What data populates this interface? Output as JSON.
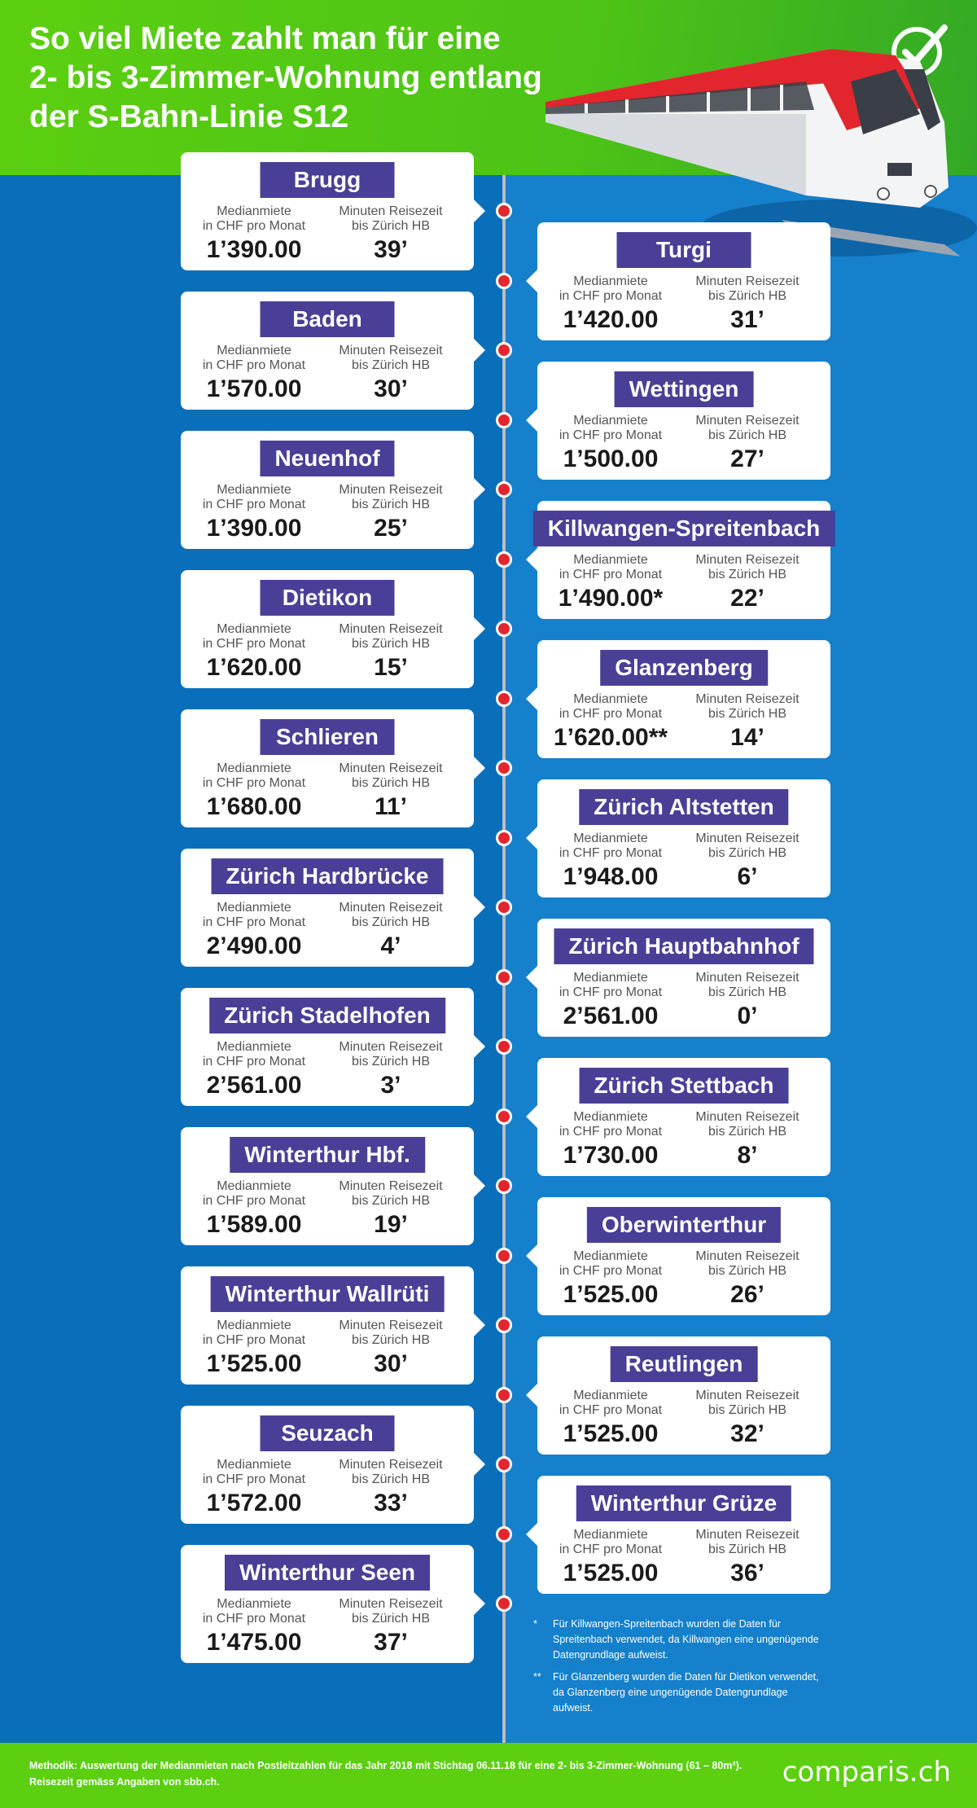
{
  "title": "So viel Miete zahlt man für eine\n2- bis 3-Zimmer-Wohnung entlang\nder S-Bahn-Linie S12",
  "labels": {
    "rent": "Medianmiete\nin CHF pro Monat",
    "time": "Minuten Reisezeit\nbis Zürich HB"
  },
  "stations": [
    {
      "name": "Brugg",
      "rent": "1’390.00",
      "time": "39’"
    },
    {
      "name": "Turgi",
      "rent": "1’420.00",
      "time": "31’"
    },
    {
      "name": "Baden",
      "rent": "1’570.00",
      "time": "30’"
    },
    {
      "name": "Wettingen",
      "rent": "1’500.00",
      "time": "27’"
    },
    {
      "name": "Neuenhof",
      "rent": "1’390.00",
      "time": "25’"
    },
    {
      "name": "Killwangen-Spreitenbach",
      "rent": "1’490.00*",
      "time": "22’"
    },
    {
      "name": "Dietikon",
      "rent": "1’620.00",
      "time": "15’"
    },
    {
      "name": "Glanzenberg",
      "rent": "1’620.00**",
      "time": "14’"
    },
    {
      "name": "Schlieren",
      "rent": "1’680.00",
      "time": "11’"
    },
    {
      "name": "Zürich Altstetten",
      "rent": "1’948.00",
      "time": "6’"
    },
    {
      "name": "Zürich Hardbrücke",
      "rent": "2’490.00",
      "time": "4’"
    },
    {
      "name": "Zürich Hauptbahnhof",
      "rent": "2’561.00",
      "time": "0’"
    },
    {
      "name": "Zürich Stadelhofen",
      "rent": "2’561.00",
      "time": "3’"
    },
    {
      "name": "Zürich Stettbach",
      "rent": "1’730.00",
      "time": "8’"
    },
    {
      "name": "Winterthur Hbf.",
      "rent": "1’589.00",
      "time": "19’"
    },
    {
      "name": "Oberwinterthur",
      "rent": "1’525.00",
      "time": "26’"
    },
    {
      "name": "Winterthur Wallrüti",
      "rent": "1’525.00",
      "time": "30’"
    },
    {
      "name": "Reutlingen",
      "rent": "1’525.00",
      "time": "32’"
    },
    {
      "name": "Seuzach",
      "rent": "1’572.00",
      "time": "33’"
    },
    {
      "name": "Winterthur Grüze",
      "rent": "1’525.00",
      "time": "36’"
    },
    {
      "name": "Winterthur Seen",
      "rent": "1’475.00",
      "time": "37’"
    }
  ],
  "footnotes": [
    {
      "mark": "*",
      "text": "Für Killwangen-Spreitenbach wurden die Daten für Spreitenbach verwendet, da Killwangen eine ungenügende Datengrundlage aufweist."
    },
    {
      "mark": "**",
      "text": "Für Glanzenberg wurden die Daten für Dietikon verwendet, da Glanzenberg eine ungenügende Datengrundlage aufweist."
    }
  ],
  "methodology": "Methodik: Auswertung der Medianmieten nach Postleitzahlen für das Jahr 2018 mit Stichtag 06.11.18 für eine 2- bis 3-Zimmer-Wohnung (61 – 80m²). Reisezeit gemäss Angaben von sbb.ch.",
  "brand": "comparis.ch",
  "colors": {
    "header_green": "#5ccf10",
    "background_blue": "#1479c4",
    "station_label": "#4a3f97",
    "track_dot": "#e3262e"
  },
  "icons": [
    "checkmark-icon",
    "train-illustration"
  ]
}
